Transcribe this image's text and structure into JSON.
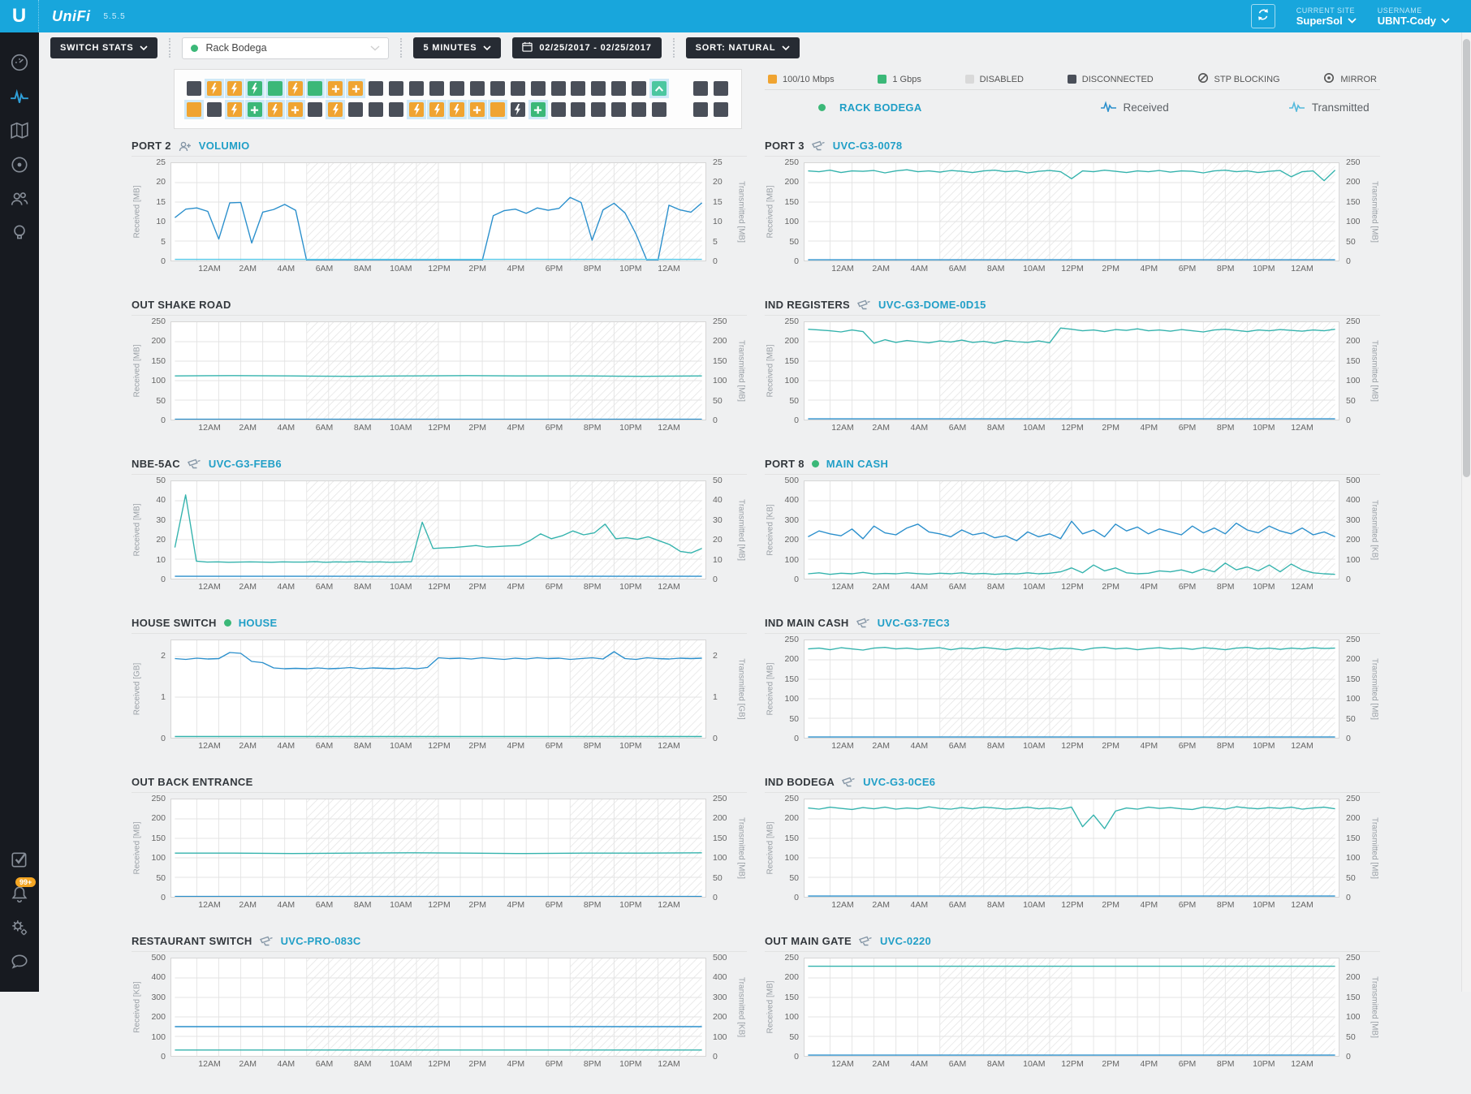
{
  "topbar": {
    "logo": "U",
    "brand": "UniFi",
    "version": "5.5.5",
    "current_site_label": "CURRENT SITE",
    "current_site": "SuperSol",
    "username_label": "USERNAME",
    "username": "UBNT-Cody"
  },
  "toolbar": {
    "stats_type": "SWITCH STATS",
    "device_select": "Rack Bodega",
    "interval": "5 MINUTES",
    "date_range": "02/25/2017 - 02/25/2017",
    "sort": "SORT: NATURAL"
  },
  "sidebar": {
    "alert_badge": "99+"
  },
  "colors": {
    "accent_blue": "#18a6dc",
    "received_line": "#2a8fcc",
    "transmitted_line": "#34b3ad",
    "cyan_line": "#54c8e8",
    "ports": {
      "o": "#f0a431",
      "g": "#3bb878",
      "t": "#4cc7a0",
      "d": "#4a4f59",
      "hl": "#cfe9f7"
    }
  },
  "ports": {
    "rows": [
      {
        "main": [
          "d",
          "ob!",
          "ob!",
          "gb!",
          "g!",
          "ob!",
          "g!",
          "o+!",
          "o+!",
          "d",
          "d",
          "d",
          "d",
          "d",
          "d",
          "d",
          "d",
          "d",
          "d",
          "d",
          "d",
          "d",
          "d",
          "tu!"
        ],
        "sfp": [
          "d",
          "d"
        ]
      },
      {
        "main": [
          "o!",
          "d",
          "ob!",
          "g+!",
          "ob!",
          "o+!",
          "d",
          "ob!",
          "d",
          "d",
          "d",
          "ob!",
          "ob!",
          "ob!",
          "o+!",
          "o!",
          "db",
          "g+!",
          "d",
          "d",
          "d",
          "d",
          "d",
          "d"
        ],
        "sfp": [
          "d",
          "d"
        ]
      }
    ],
    "legend": [
      {
        "label": "100/10 Mbps",
        "swatch": "#f0a431"
      },
      {
        "label": "1 Gbps",
        "swatch": "#3bb878"
      },
      {
        "label": "DISABLED",
        "swatch": "#d9d9d9"
      },
      {
        "label": "DISCONNECTED",
        "swatch": "#4a4f59"
      },
      {
        "label": "STP BLOCKING",
        "icon": "stp"
      },
      {
        "label": "MIRROR",
        "icon": "mirror"
      }
    ]
  },
  "series_legend": {
    "site": "RACK BODEGA",
    "received": "Received",
    "transmitted": "Transmitted"
  },
  "chart_defaults": {
    "type": "line",
    "x_hours": 24,
    "xticks": [
      "12AM",
      "2AM",
      "4AM",
      "6AM",
      "8AM",
      "10AM",
      "12PM",
      "2PM",
      "4PM",
      "6PM",
      "8PM",
      "10PM",
      "12AM"
    ],
    "hatch_bands_hours": [
      [
        6,
        12
      ],
      [
        18,
        24
      ]
    ],
    "grid": true
  },
  "chart_data": [
    {
      "title": "PORT 2",
      "device": "VOLUMIO",
      "icon": "client",
      "ylabel_left": "Received [MB]",
      "ylabel_right": "Transmitted [MB]",
      "ymax": 25,
      "yticks": [
        0,
        5,
        10,
        15,
        20,
        25
      ],
      "series": [
        {
          "name": "received",
          "color": "#2a8fcc",
          "values": [
            11,
            13.2,
            13.5,
            12.6,
            5.5,
            14.8,
            14.9,
            4.5,
            12.4,
            13.1,
            14.4,
            12.9,
            0,
            0,
            0,
            0,
            0,
            0,
            0,
            0,
            0,
            0,
            0,
            0,
            0,
            0,
            0,
            0,
            0,
            11.5,
            12.8,
            13.2,
            12.1,
            13.5,
            12.9,
            13.4,
            16.2,
            14.9,
            5.2,
            13,
            14.7,
            12.2,
            6.8,
            0,
            0,
            14.2,
            13,
            12.4,
            14.8
          ]
        },
        {
          "name": "transmitted",
          "color": "#54c8e8",
          "values": [
            0.3,
            0.3
          ]
        }
      ]
    },
    {
      "title": "PORT 3",
      "device": "UVC-G3-0078",
      "icon": "camera",
      "ylabel_left": "Received [MB]",
      "ylabel_right": "Transmitted [MB]",
      "ymax": 250,
      "yticks": [
        0,
        50,
        100,
        150,
        200,
        250
      ],
      "series": [
        {
          "name": "transmitted",
          "color": "#34b3ad",
          "values": [
            230,
            228,
            232,
            226,
            230,
            229,
            231,
            225,
            230,
            233,
            228,
            230,
            227,
            231,
            229,
            226,
            230,
            232,
            228,
            230,
            225,
            229,
            231,
            228,
            210,
            230,
            228,
            232,
            229,
            226,
            230,
            228,
            231,
            227,
            230,
            229,
            225,
            230,
            232,
            228,
            230,
            226,
            229,
            231,
            215,
            228,
            230,
            205,
            232
          ]
        },
        {
          "name": "received",
          "color": "#2a8fcc",
          "values": [
            2,
            2
          ]
        }
      ]
    },
    {
      "title": "OUT SHAKE ROAD",
      "device": null,
      "icon": null,
      "ylabel_left": "Received [MB]",
      "ylabel_right": "Transmitted [MB]",
      "ymax": 250,
      "yticks": [
        0,
        50,
        100,
        150,
        200,
        250
      ],
      "series": [
        {
          "name": "transmitted",
          "color": "#34b3ad",
          "values": [
            112,
            113,
            112,
            111,
            112,
            113,
            112,
            112,
            111,
            112
          ]
        },
        {
          "name": "received",
          "color": "#2a8fcc",
          "values": [
            1,
            1
          ]
        }
      ]
    },
    {
      "title": "IND REGISTERS",
      "device": "UVC-G3-DOME-0D15",
      "icon": "camera",
      "ylabel_left": "Received [MB]",
      "ylabel_right": "Transmitted [MB]",
      "ymax": 250,
      "yticks": [
        0,
        50,
        100,
        150,
        200,
        250
      ],
      "series": [
        {
          "name": "transmitted",
          "color": "#34b3ad",
          "values": [
            232,
            230,
            228,
            225,
            230,
            226,
            196,
            205,
            198,
            203,
            200,
            197,
            202,
            199,
            204,
            198,
            201,
            196,
            203,
            200,
            198,
            202,
            197,
            235,
            232,
            228,
            230,
            226,
            231,
            229,
            233,
            228,
            230,
            227,
            231,
            228,
            225,
            230,
            232,
            229,
            226,
            230,
            228,
            231,
            229,
            227,
            230,
            228,
            232
          ]
        },
        {
          "name": "received",
          "color": "#2a8fcc",
          "values": [
            2,
            2
          ]
        }
      ]
    },
    {
      "title": "NBE-5AC",
      "device": "UVC-G3-FEB6",
      "icon": "camera",
      "ylabel_left": "Received [MB]",
      "ylabel_right": "Transmitted [MB]",
      "ymax": 50,
      "yticks": [
        0,
        10,
        20,
        30,
        40,
        50
      ],
      "series": [
        {
          "name": "transmitted",
          "color": "#34b3ad",
          "values": [
            16,
            43,
            9,
            8.5,
            8.6,
            8.4,
            8.5,
            8.6,
            8.5,
            8.4,
            8.6,
            8.5,
            8.5,
            8.7,
            8.4,
            8.6,
            8.5,
            8.8,
            8.5,
            8.6,
            8.4,
            8.5,
            8.7,
            29,
            15.5,
            15.8,
            16,
            16.5,
            17,
            16.2,
            16.5,
            16.8,
            17,
            19.5,
            23,
            20.5,
            22,
            24.5,
            22.5,
            23.5,
            28,
            20.5,
            21,
            20.2,
            21.5,
            19.5,
            17.5,
            14,
            13.2,
            15.5
          ]
        },
        {
          "name": "received",
          "color": "#2a8fcc",
          "values": [
            1.2,
            1.2
          ]
        }
      ]
    },
    {
      "title": "PORT 8",
      "device": "MAIN CASH",
      "icon": "dot",
      "ylabel_left": "Received [KB]",
      "ylabel_right": "Transmitted [KB]",
      "ymax": 500,
      "yticks": [
        0,
        100,
        200,
        300,
        400,
        500
      ],
      "series": [
        {
          "name": "received",
          "color": "#2a8fcc",
          "values": [
            215,
            245,
            230,
            220,
            255,
            205,
            270,
            235,
            225,
            260,
            280,
            240,
            230,
            215,
            250,
            225,
            235,
            210,
            220,
            195,
            240,
            215,
            230,
            205,
            295,
            230,
            250,
            215,
            280,
            245,
            265,
            230,
            255,
            240,
            225,
            270,
            235,
            260,
            230,
            285,
            250,
            235,
            270,
            245,
            230,
            260,
            225,
            240,
            215
          ]
        },
        {
          "name": "transmitted",
          "color": "#34b3ad",
          "values": [
            25,
            30,
            22,
            28,
            25,
            32,
            24,
            27,
            25,
            30,
            26,
            23,
            28,
            25,
            30,
            24,
            27,
            22,
            26,
            24,
            30,
            25,
            28,
            35,
            55,
            30,
            70,
            40,
            55,
            30,
            25,
            28,
            40,
            35,
            45,
            30,
            50,
            35,
            80,
            45,
            60,
            40,
            70,
            35,
            75,
            45,
            30,
            25,
            22
          ]
        }
      ]
    },
    {
      "title": "HOUSE SWITCH",
      "device": "HOUSE",
      "icon": "dot",
      "ylabel_left": "Received [GB]",
      "ylabel_right": "Transmitted [GB]",
      "ymax": 2.4,
      "yticks": [
        0,
        1,
        2
      ],
      "series": [
        {
          "name": "received",
          "color": "#2a8fcc",
          "values": [
            1.95,
            1.93,
            1.96,
            1.94,
            1.95,
            2.1,
            2.08,
            1.88,
            1.85,
            1.72,
            1.7,
            1.71,
            1.7,
            1.72,
            1.7,
            1.71,
            1.73,
            1.7,
            1.72,
            1.71,
            1.7,
            1.72,
            1.7,
            1.73,
            1.97,
            1.95,
            1.96,
            1.94,
            1.97,
            1.95,
            1.93,
            1.96,
            1.94,
            1.97,
            1.95,
            1.96,
            1.93,
            1.95,
            1.97,
            1.94,
            2.12,
            1.95,
            1.93,
            1.97,
            1.95,
            1.94,
            1.96,
            1.95,
            1.96
          ]
        },
        {
          "name": "transmitted",
          "color": "#34b3ad",
          "values": [
            0.03,
            0.03
          ]
        }
      ]
    },
    {
      "title": "IND MAIN CASH",
      "device": "UVC-G3-7EC3",
      "icon": "camera",
      "ylabel_left": "Received [MB]",
      "ylabel_right": "Transmitted [MB]",
      "ymax": 250,
      "yticks": [
        0,
        50,
        100,
        150,
        200,
        250
      ],
      "series": [
        {
          "name": "transmitted",
          "color": "#34b3ad",
          "values": [
            228,
            230,
            226,
            231,
            228,
            225,
            230,
            232,
            228,
            230,
            227,
            229,
            231,
            226,
            230,
            228,
            232,
            229,
            226,
            230,
            228,
            231,
            227,
            230,
            229,
            225,
            230,
            232,
            228,
            230,
            226,
            229,
            231,
            228,
            230,
            227,
            231,
            229,
            226,
            230,
            232,
            228,
            230,
            227,
            230,
            228,
            231,
            229,
            230
          ]
        },
        {
          "name": "received",
          "color": "#2a8fcc",
          "values": [
            2,
            2
          ]
        }
      ]
    },
    {
      "title": "OUT BACK ENTRANCE",
      "device": null,
      "icon": null,
      "ylabel_left": "Received [MB]",
      "ylabel_right": "Transmitted [MB]",
      "ymax": 250,
      "yticks": [
        0,
        50,
        100,
        150,
        200,
        250
      ],
      "series": [
        {
          "name": "transmitted",
          "color": "#34b3ad",
          "values": [
            112,
            112,
            111,
            112,
            113,
            112,
            111,
            112,
            112,
            113
          ]
        },
        {
          "name": "received",
          "color": "#2a8fcc",
          "values": [
            1,
            1
          ]
        }
      ]
    },
    {
      "title": "IND BODEGA",
      "device": "UVC-G3-0CE6",
      "icon": "camera",
      "ylabel_left": "Received [MB]",
      "ylabel_right": "Transmitted [MB]",
      "ymax": 250,
      "yticks": [
        0,
        50,
        100,
        150,
        200,
        250
      ],
      "series": [
        {
          "name": "transmitted",
          "color": "#34b3ad",
          "values": [
            228,
            225,
            230,
            227,
            224,
            229,
            226,
            230,
            225,
            228,
            226,
            231,
            227,
            225,
            229,
            226,
            230,
            228,
            225,
            227,
            230,
            226,
            228,
            225,
            230,
            180,
            210,
            175,
            220,
            228,
            225,
            230,
            227,
            229,
            226,
            224,
            230,
            228,
            225,
            231,
            228,
            226,
            229,
            227,
            230,
            225,
            228,
            230,
            226
          ]
        },
        {
          "name": "received",
          "color": "#2a8fcc",
          "values": [
            2,
            2
          ]
        }
      ]
    },
    {
      "title": "RESTAURANT SWITCH",
      "device": "UVC-PRO-083C",
      "icon": "camera",
      "ylabel_left": "Received [KB]",
      "ylabel_right": "Transmitted [KB]",
      "ymax": 500,
      "yticks": [
        0,
        100,
        200,
        300,
        400,
        500
      ],
      "series": [
        {
          "name": "received",
          "color": "#2a8fcc",
          "values": [
            150,
            150
          ]
        },
        {
          "name": "transmitted",
          "color": "#34b3ad",
          "values": [
            30,
            30
          ]
        }
      ]
    },
    {
      "title": "OUT MAIN GATE",
      "device": "UVC-0220",
      "icon": "camera",
      "ylabel_left": "Received [MB]",
      "ylabel_right": "Transmitted [MB]",
      "ymax": 250,
      "yticks": [
        0,
        50,
        100,
        150,
        200,
        250
      ],
      "series": [
        {
          "name": "transmitted",
          "color": "#34b3ad",
          "values": [
            230,
            230
          ]
        },
        {
          "name": "received",
          "color": "#2a8fcc",
          "values": [
            2,
            2
          ]
        }
      ]
    }
  ]
}
